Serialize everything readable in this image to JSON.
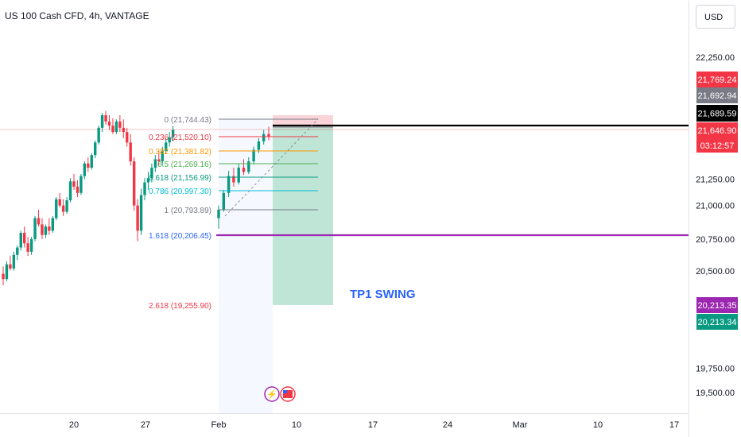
{
  "header": {
    "title": "US 100 Cash CFD, 4h, VANTAGE",
    "currency_button": "USD"
  },
  "chart_data": {
    "type": "candlestick",
    "symbol": "US 100 Cash CFD",
    "timeframe": "4h",
    "broker": "VANTAGE",
    "y_ticks": [
      "22,250.00",
      "21,250.00",
      "21,000.00",
      "20,750.00",
      "20,500.00",
      "19,750.00",
      "19,500.00"
    ],
    "x_ticks": [
      "20",
      "27",
      "Feb",
      "10",
      "17",
      "24",
      "Mar",
      "10",
      "17"
    ],
    "price_labels": [
      {
        "text": "21,769.24",
        "color": "#f23645"
      },
      {
        "text": "21,692.94",
        "color": "#787b86"
      },
      {
        "text": "21,689.59",
        "color": "#000000"
      },
      {
        "text": "21,646.90",
        "color": "#f23645"
      },
      {
        "text": "03:12:57",
        "color": "#f23645"
      },
      {
        "text": "20,213.35",
        "color": "#9c27b0"
      },
      {
        "text": "20,213.34",
        "color": "#089981"
      }
    ],
    "fib_levels": [
      {
        "text": "0 (21,744.43)",
        "color": "#787b86",
        "line": "#787b86"
      },
      {
        "text": "0.236 (21,520.10)",
        "color": "#f23645",
        "line": "#f23645"
      },
      {
        "text": "0.382 (21,381.82)",
        "color": "#ff9800",
        "line": "#ff9800"
      },
      {
        "text": "0.5 (21,269.16)",
        "color": "#4caf50",
        "line": "#4caf50"
      },
      {
        "text": "0.618 (21,156.99)",
        "color": "#089981",
        "line": "#089981"
      },
      {
        "text": "0.786 (20,997.30)",
        "color": "#00bcd4",
        "line": "#00bcd4"
      },
      {
        "text": "1 (20,793.89)",
        "color": "#787b86",
        "line": "#787b86"
      },
      {
        "text": "1.618 (20,206.45)",
        "color": "#2962ff",
        "line": "#9c27b0"
      },
      {
        "text": "2.618 (19,255.90)",
        "color": "#f23645",
        "line": "#f23645"
      }
    ],
    "annotations": [
      "TP1 SWING"
    ],
    "candles": [
      [
        20350,
        20420,
        20240,
        20300
      ],
      [
        20300,
        20470,
        20280,
        20440
      ],
      [
        20440,
        20520,
        20380,
        20400
      ],
      [
        20400,
        20560,
        20380,
        20530
      ],
      [
        20530,
        20620,
        20480,
        20600
      ],
      [
        20600,
        20760,
        20570,
        20740
      ],
      [
        20740,
        20800,
        20600,
        20640
      ],
      [
        20640,
        20700,
        20520,
        20560
      ],
      [
        20560,
        20700,
        20530,
        20680
      ],
      [
        20680,
        20900,
        20660,
        20880
      ],
      [
        20880,
        20960,
        20800,
        20820
      ],
      [
        20820,
        20880,
        20680,
        20720
      ],
      [
        20720,
        20820,
        20690,
        20800
      ],
      [
        20800,
        20880,
        20720,
        20760
      ],
      [
        20760,
        20900,
        20740,
        20880
      ],
      [
        20880,
        21080,
        20860,
        21060
      ],
      [
        21060,
        21120,
        20980,
        21000
      ],
      [
        21000,
        21060,
        20900,
        20940
      ],
      [
        20940,
        21080,
        20920,
        21050
      ],
      [
        21050,
        21260,
        21030,
        21230
      ],
      [
        21230,
        21300,
        21150,
        21180
      ],
      [
        21180,
        21240,
        21080,
        21120
      ],
      [
        21120,
        21300,
        21100,
        21280
      ],
      [
        21280,
        21420,
        21250,
        21400
      ],
      [
        21400,
        21460,
        21320,
        21360
      ],
      [
        21360,
        21500,
        21340,
        21480
      ],
      [
        21480,
        21620,
        21450,
        21600
      ],
      [
        21600,
        21760,
        21580,
        21740
      ],
      [
        21740,
        21880,
        21700,
        21860
      ],
      [
        21860,
        21900,
        21770,
        21800
      ],
      [
        21800,
        21860,
        21720,
        21760
      ],
      [
        21760,
        21830,
        21680,
        21700
      ],
      [
        21700,
        21820,
        21680,
        21800
      ],
      [
        21800,
        21860,
        21700,
        21740
      ],
      [
        21740,
        21820,
        21640,
        21700
      ],
      [
        21700,
        21740,
        21560,
        21600
      ],
      [
        21600,
        21680,
        21380,
        21420
      ],
      [
        21420,
        21460,
        20950,
        21000
      ],
      [
        21000,
        21060,
        20660,
        20760
      ],
      [
        20760,
        21160,
        20720,
        21100
      ],
      [
        21100,
        21260,
        21050,
        21220
      ],
      [
        21220,
        21320,
        21150,
        21260
      ],
      [
        21260,
        21400,
        21220,
        21360
      ],
      [
        21360,
        21480,
        21320,
        21440
      ],
      [
        21440,
        21520,
        21380,
        21420
      ],
      [
        21420,
        21560,
        21380,
        21520
      ],
      [
        21520,
        21640,
        21490,
        21600
      ],
      [
        21600,
        21700,
        21560,
        21650
      ],
      [
        21650,
        21760,
        21610,
        21720
      ],
      [
        20880,
        21000,
        20780,
        20960
      ],
      [
        20960,
        21150,
        20940,
        21120
      ],
      [
        21120,
        21330,
        21080,
        21280
      ],
      [
        21280,
        21360,
        21180,
        21220
      ],
      [
        21220,
        21400,
        21200,
        21360
      ],
      [
        21360,
        21440,
        21290,
        21320
      ],
      [
        21320,
        21460,
        21300,
        21420
      ],
      [
        21420,
        21560,
        21390,
        21530
      ],
      [
        21530,
        21640,
        21500,
        21610
      ],
      [
        21610,
        21720,
        21580,
        21680
      ],
      [
        21680,
        21750,
        21620,
        21660
      ]
    ]
  }
}
